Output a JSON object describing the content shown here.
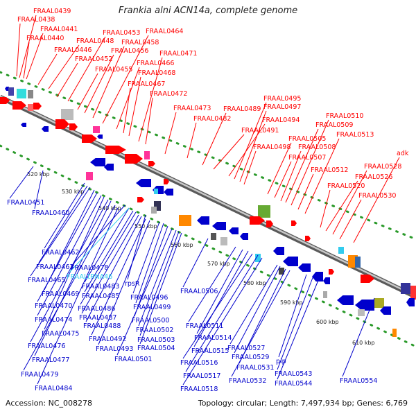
{
  "title": "Frankia alni ACN14a, complete genome",
  "footer": {
    "accession": "Accession: NC_008278",
    "summary": "Topology: circular; Length: 7,497,934 bp; Genes: 6,769"
  },
  "colors": {
    "forward_strand": "#ff0000",
    "reverse_strand": "#0000cc",
    "rna_gene": "#33ccee",
    "backbone": "#888888",
    "guide_dots": "#2a9a2a"
  },
  "ticks": [
    "520 kbp",
    "530 kbp",
    "540 kbp",
    "550 kbp",
    "560 kbp",
    "570 kbp",
    "580 kbp",
    "590 kbp",
    "600 kbp",
    "610 kbp"
  ],
  "forward_labels": [
    "FRAAL0439",
    "FRAAL0438",
    "FRAAL0441",
    "FRAAL0440",
    "FRAAL0446",
    "FRAAL0448",
    "FRAAL0452",
    "FRAAL0453",
    "FRAAL0455",
    "FRAAL0456",
    "FRAAL0458",
    "FRAAL0464",
    "FRAAL0466",
    "FRAAL0467",
    "FRAAL0468",
    "FRAAL0471",
    "FRAAL0472",
    "FRAAL0473",
    "FRAAL0482",
    "FRAAL0489",
    "FRAAL0491",
    "FRAAL0494",
    "FRAAL0495",
    "FRAAL0497",
    "FRAAL0498",
    "FRAAL0505",
    "FRAAL0507",
    "FRAAL0508",
    "FRAAL0509",
    "FRAAL0510",
    "FRAAL0512",
    "FRAAL0513",
    "FRAAL0520",
    "FRAAL0526",
    "FRAAL0528",
    "FRAAL0530",
    "adk"
  ],
  "reverse_labels": [
    "FRAAL0451",
    "FRAAL0460",
    "FRAAL0462",
    "FRAAL0463",
    "FRAAL0465",
    "FRAAL0469",
    "FRAAL0470",
    "FRAAL0474",
    "FRAAL0475",
    "FRAAL0476",
    "FRAAL0477",
    "FRAAL0478",
    "FRAAL0479",
    "FRAAL0483",
    "FRAAL0484",
    "FRAAL0485",
    "FRAAL0486",
    "FRAAL0487",
    "FRAAL0488",
    "FRAAL0492",
    "FRAAL0493",
    "FRAAL0496",
    "FRAAL0499",
    "FRAAL0500",
    "FRAAL0501",
    "FRAAL0502",
    "FRAAL0503",
    "FRAAL0504",
    "FRAAL0506",
    "FRAAL0511",
    "FRAAL0514",
    "FRAAL0515",
    "FRAAL0516",
    "FRAAL0517",
    "FRAAL0518",
    "FRAAL0527",
    "FRAAL0529",
    "FRAAL0531",
    "FRAAL0532",
    "FRAAL0543",
    "FRAAL0544",
    "FRAAL0554",
    "rpsR",
    "pip"
  ],
  "rna_labels": [
    "FRAALtRNA46"
  ]
}
